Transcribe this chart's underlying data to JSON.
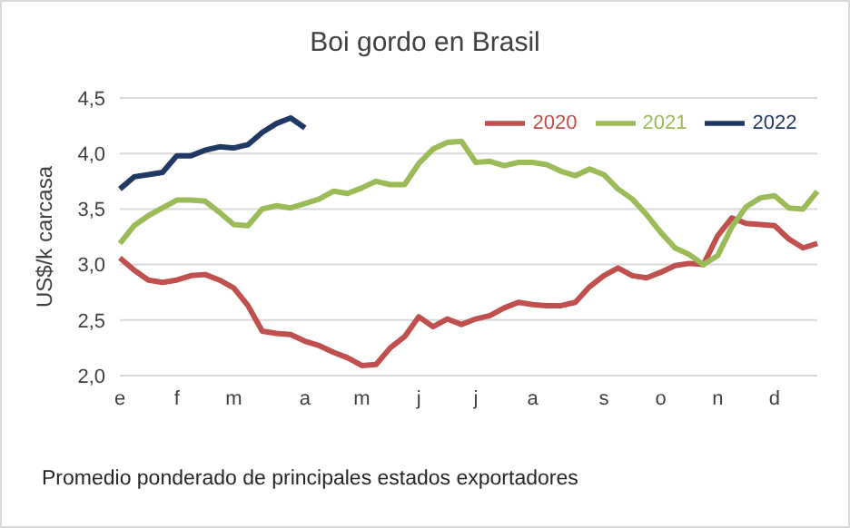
{
  "chart_data": {
    "type": "line",
    "title": "Boi gordo en Brasil",
    "ylabel": "US$/k carcasa",
    "annotations": [
      "Promedio ponderado de principales estados exportadores"
    ],
    "categories": [
      "e",
      null,
      null,
      null,
      "f",
      null,
      null,
      null,
      "m",
      null,
      null,
      null,
      null,
      "a",
      null,
      null,
      null,
      "m",
      null,
      null,
      null,
      "j",
      null,
      null,
      null,
      "j",
      null,
      null,
      null,
      "a",
      null,
      null,
      null,
      null,
      "s",
      null,
      null,
      null,
      "o",
      null,
      null,
      null,
      "n",
      null,
      null,
      null,
      "d",
      null,
      null,
      null
    ],
    "ylim": [
      2,
      4.5
    ],
    "yticks": [
      {
        "value": 2,
        "label": "2,0"
      },
      {
        "value": 2.5,
        "label": "2,5"
      },
      {
        "value": 3,
        "label": "3,0"
      },
      {
        "value": 3.5,
        "label": "3,5"
      },
      {
        "value": 4,
        "label": "4,0"
      },
      {
        "value": 4.5,
        "label": "4,5"
      }
    ],
    "grid": "y",
    "legend": "top right",
    "marker": "none",
    "line_style": "solid",
    "series": [
      {
        "name": "2020",
        "color": "#c0504d",
        "values": [
          3.06,
          2.95,
          2.86,
          2.84,
          2.86,
          2.9,
          2.91,
          2.86,
          2.79,
          2.63,
          2.4,
          2.38,
          2.37,
          2.31,
          2.27,
          2.21,
          2.16,
          2.09,
          2.1,
          2.25,
          2.35,
          2.53,
          2.44,
          2.51,
          2.46,
          2.51,
          2.54,
          2.61,
          2.66,
          2.64,
          2.63,
          2.63,
          2.66,
          2.8,
          2.9,
          2.97,
          2.9,
          2.88,
          2.93,
          2.99,
          3.01,
          3.0,
          3.26,
          3.42,
          3.37,
          3.36,
          3.35,
          3.23,
          3.15,
          3.19
        ]
      },
      {
        "name": "2021",
        "color": "#9bbb59",
        "values": [
          3.19,
          3.35,
          3.44,
          3.51,
          3.58,
          3.58,
          3.57,
          3.47,
          3.36,
          3.35,
          3.5,
          3.53,
          3.51,
          3.55,
          3.59,
          3.66,
          3.64,
          3.69,
          3.75,
          3.72,
          3.72,
          3.91,
          4.04,
          4.1,
          4.11,
          3.92,
          3.93,
          3.89,
          3.92,
          3.92,
          3.9,
          3.84,
          3.8,
          3.86,
          3.81,
          3.68,
          3.59,
          3.45,
          3.29,
          3.15,
          3.09,
          3.0,
          3.08,
          3.34,
          3.52,
          3.6,
          3.62,
          3.51,
          3.5,
          3.66
        ]
      },
      {
        "name": "2022",
        "color": "#1f3864",
        "values": [
          3.68,
          3.79,
          3.81,
          3.83,
          3.98,
          3.98,
          4.03,
          4.06,
          4.05,
          4.08,
          4.19,
          4.27,
          4.32,
          4.23,
          null,
          null,
          null,
          null,
          null,
          null,
          null,
          null,
          null,
          null,
          null,
          null,
          null,
          null,
          null,
          null,
          null,
          null,
          null,
          null,
          null,
          null,
          null,
          null,
          null,
          null,
          null,
          null,
          null,
          null,
          null,
          null,
          null,
          null,
          null,
          null
        ]
      }
    ]
  }
}
